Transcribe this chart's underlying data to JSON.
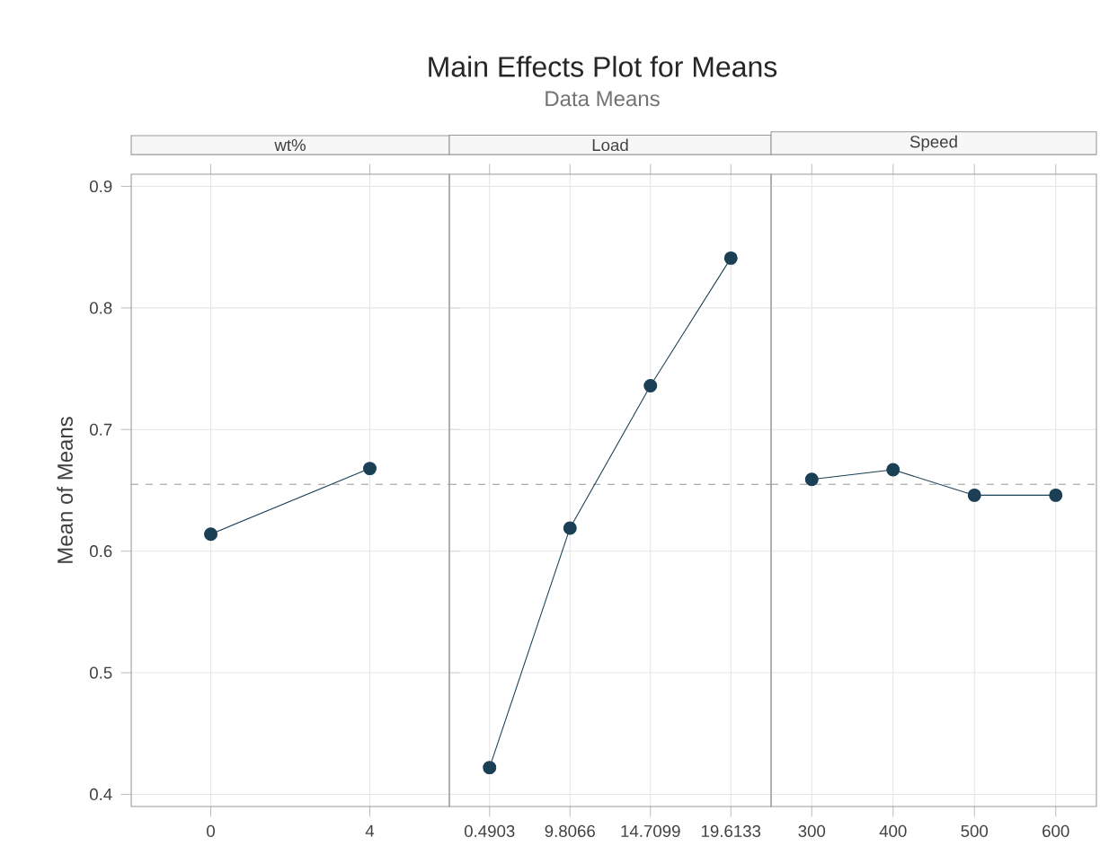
{
  "chart_data": [
    {
      "type": "line",
      "title": "wt%",
      "ylabel": "Mean of Means",
      "annotations": [
        "Main Effects Plot for Means",
        "Data Means"
      ],
      "categories": [
        "0",
        "4"
      ],
      "values": [
        0.614,
        0.668
      ],
      "color": "#1b3f55",
      "ylim": [
        0.39,
        0.91
      ],
      "yticks": [
        0.4,
        0.5,
        0.6,
        0.7,
        0.8,
        0.9
      ],
      "grid": true,
      "marker": "circle",
      "line_style": "solid",
      "ref_lines": [
        {
          "axis": "y",
          "value": 0.655,
          "color": "#999999",
          "line_style": "dashed"
        }
      ]
    },
    {
      "type": "line",
      "title": "Load",
      "categories": [
        "0.4903",
        "9.8066",
        "14.7099",
        "19.6133"
      ],
      "values": [
        0.422,
        0.619,
        0.736,
        0.841
      ],
      "color": "#1b3f55",
      "ylim": [
        0.39,
        0.91
      ],
      "yticks": [
        0.4,
        0.5,
        0.6,
        0.7,
        0.8,
        0.9
      ],
      "tick_labels": "x",
      "grid": true,
      "marker": "circle",
      "line_style": "solid",
      "ref_lines": [
        {
          "axis": "y",
          "value": 0.655,
          "color": "#999999",
          "line_style": "dashed"
        }
      ]
    },
    {
      "type": "line",
      "title": "Speed",
      "categories": [
        "300",
        "400",
        "500",
        "600"
      ],
      "values": [
        0.659,
        0.667,
        0.646,
        0.646
      ],
      "color": "#1b3f55",
      "ylim": [
        0.39,
        0.91
      ],
      "yticks": [
        0.4,
        0.5,
        0.6,
        0.7,
        0.8,
        0.9
      ],
      "tick_labels": "x",
      "grid": true,
      "marker": "circle",
      "line_style": "solid",
      "ref_lines": [
        {
          "axis": "y",
          "value": 0.655,
          "color": "#999999",
          "line_style": "dashed"
        }
      ]
    }
  ]
}
